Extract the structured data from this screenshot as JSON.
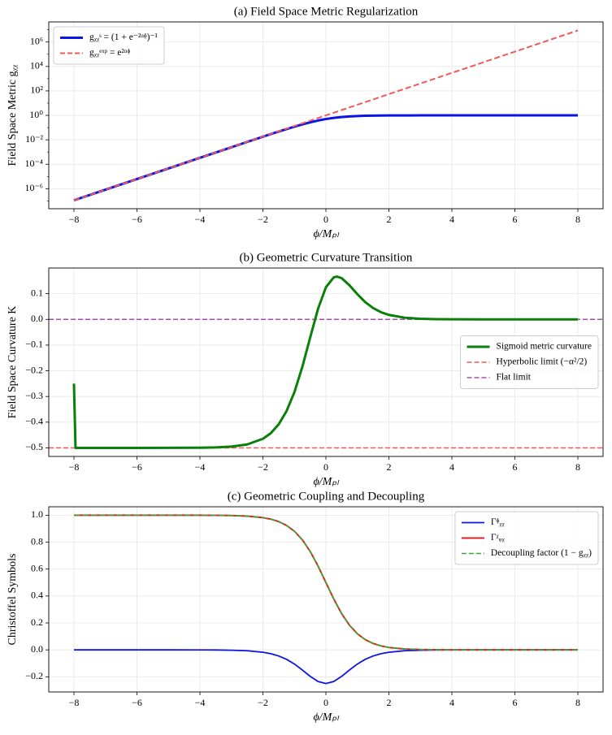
{
  "chart_data": [
    {
      "type": "line",
      "title": "(a) Field Space Metric Regularization",
      "xlabel": "ϕ/Mₚₗ",
      "ylabel": "Field Space Metric gᵪᵪ",
      "yscale": "log",
      "grid": true,
      "legend": "upper left",
      "x": [
        -8,
        -7,
        -6,
        -5,
        -4,
        -3.5,
        -3,
        -2.5,
        -2,
        -1.75,
        -1.5,
        -1.25,
        -1,
        -0.75,
        -0.5,
        -0.25,
        0,
        0.25,
        0.5,
        0.75,
        1,
        1.25,
        1.5,
        1.75,
        2,
        2.5,
        3,
        3.5,
        4,
        5,
        6,
        7,
        8
      ],
      "series": [
        {
          "name": "gᵪᵪˢ = (1 + e⁻²ᵅᶲ)⁻¹",
          "color": "#0a14e6",
          "linewidth": 3,
          "dashed": false,
          "values": [
            1.125e-07,
            8.32e-07,
            6.14e-06,
            4.54e-05,
            0.000335,
            0.000911,
            0.002473,
            0.006693,
            0.017986,
            0.029312,
            0.047426,
            0.075858,
            0.119203,
            0.182426,
            0.268941,
            0.377541,
            0.5,
            0.622459,
            0.731059,
            0.817574,
            0.880797,
            0.924142,
            0.952574,
            0.970688,
            0.982014,
            0.993307,
            0.997527,
            0.999089,
            0.999665,
            0.999955,
            0.999994,
            0.999999,
            1.0
          ]
        },
        {
          "name": "gᵪᵪᵉˣᵖ = e²ᵅᶲ",
          "color": "#f0585a",
          "linewidth": 2,
          "dashed": true,
          "values": [
            1.125e-07,
            8.32e-07,
            6.14e-06,
            4.54e-05,
            0.000335,
            0.000912,
            0.00248,
            0.00674,
            0.0183,
            0.0302,
            0.0498,
            0.0821,
            0.1353,
            0.2231,
            0.3679,
            0.6065,
            1,
            1.6487,
            2.7183,
            4.4817,
            7.389,
            12.18,
            20.09,
            33.12,
            54.6,
            148.4,
            403.4,
            1096.6,
            2981,
            22026,
            162755,
            1202604,
            8886111
          ]
        }
      ],
      "xlim": [
        -8.8,
        8.8
      ],
      "ylim": [
        2.3e-08,
        44000000.0
      ],
      "xticks": [
        {
          "value": -8,
          "label": "−8"
        },
        {
          "value": -6,
          "label": "−6"
        },
        {
          "value": -4,
          "label": "−4"
        },
        {
          "value": -2,
          "label": "−2"
        },
        0,
        2,
        4,
        6,
        8
      ],
      "yticks": [
        {
          "value": 1e-06,
          "label": "10⁻⁶"
        },
        {
          "value": 0.0001,
          "label": "10⁻⁴"
        },
        {
          "value": 0.01,
          "label": "10⁻²"
        },
        {
          "value": 1,
          "label": "10⁰"
        },
        {
          "value": 100,
          "label": "10²"
        },
        {
          "value": 10000,
          "label": "10⁴"
        },
        {
          "value": 1000000,
          "label": "10⁶"
        }
      ]
    },
    {
      "type": "line",
      "title": "(b) Geometric Curvature Transition",
      "xlabel": "ϕ/Mₚₗ",
      "ylabel": "Field Space Curvature K",
      "grid": true,
      "legend": "center right",
      "x": [
        -8,
        -7.95,
        -7,
        -6,
        -5,
        -4,
        -3.5,
        -3,
        -2.5,
        -2,
        -1.75,
        -1.5,
        -1.25,
        -1,
        -0.75,
        -0.5,
        -0.25,
        0,
        0.25,
        0.35,
        0.5,
        0.75,
        1,
        1.25,
        1.5,
        1.75,
        2,
        2.5,
        3,
        3.5,
        4,
        5,
        6,
        7,
        8
      ],
      "series": [
        {
          "name": "Sigmoid metric curvature",
          "color": "#0a800a",
          "linewidth": 3,
          "dashed": false,
          "values": [
            -0.25,
            -0.5,
            -0.5,
            -0.5,
            -0.4999,
            -0.4993,
            -0.4982,
            -0.4951,
            -0.4867,
            -0.4645,
            -0.4427,
            -0.4085,
            -0.3569,
            -0.2829,
            -0.1851,
            -0.0706,
            0.0413,
            0.125,
            0.1637,
            0.1667,
            0.1605,
            0.1325,
            0.0979,
            0.0672,
            0.0441,
            0.028,
            0.0175,
            0.0066,
            0.0025,
            0.0009,
            0.0003,
            0,
            0,
            0,
            0
          ]
        }
      ],
      "reference_lines": [
        {
          "name": "Hyperbolic limit (−α²/2)",
          "value": -0.5,
          "color": "#f0585a"
        },
        {
          "name": "Flat limit",
          "value": 0,
          "color": "#a050a8"
        }
      ],
      "xlim": [
        -8.8,
        8.8
      ],
      "ylim": [
        -0.5333,
        0.2
      ],
      "xticks": [
        {
          "value": -8,
          "label": "−8"
        },
        {
          "value": -6,
          "label": "−6"
        },
        {
          "value": -4,
          "label": "−4"
        },
        {
          "value": -2,
          "label": "−2"
        },
        0,
        2,
        4,
        6,
        8
      ],
      "yticks": [
        0.1,
        {
          "value": 0,
          "label": "0.0"
        },
        {
          "value": -0.1,
          "label": "−0.1"
        },
        {
          "value": -0.2,
          "label": "−0.2"
        },
        {
          "value": -0.3,
          "label": "−0.3"
        },
        {
          "value": -0.4,
          "label": "−0.4"
        },
        {
          "value": -0.5,
          "label": "−0.5"
        }
      ]
    },
    {
      "type": "line",
      "title": "(c) Geometric Coupling and Decoupling",
      "xlabel": "ϕ/Mₚₗ",
      "ylabel": "Christoffel Symbols",
      "grid": true,
      "legend": "upper right",
      "x": [
        -8,
        -7,
        -6,
        -5,
        -4,
        -3.5,
        -3,
        -2.5,
        -2,
        -1.75,
        -1.5,
        -1.25,
        -1,
        -0.75,
        -0.5,
        -0.25,
        0,
        0.25,
        0.5,
        0.75,
        1,
        1.25,
        1.5,
        1.75,
        2,
        2.5,
        3,
        3.5,
        4,
        5,
        6,
        7,
        8
      ],
      "series": [
        {
          "name": "Γᶲᵪᵪ",
          "color": "#0a14e6",
          "linewidth": 1.8,
          "dashed": false,
          "values": [
            0,
            0,
            0,
            0,
            -0.0003,
            -0.0009,
            -0.0025,
            -0.0066,
            -0.0177,
            -0.0285,
            -0.0452,
            -0.0701,
            -0.105,
            -0.1491,
            -0.1966,
            -0.235,
            -0.25,
            -0.235,
            -0.1966,
            -0.1491,
            -0.105,
            -0.0701,
            -0.0452,
            -0.0285,
            -0.0177,
            -0.0066,
            -0.0025,
            -0.0009,
            -0.0003,
            0,
            0,
            0,
            0
          ]
        },
        {
          "name": "Γᵡᵩᵪ",
          "color": "#e0201b",
          "linewidth": 2,
          "dashed": false,
          "values": [
            1.0,
            1.0,
            1.0,
            1.0,
            0.9997,
            0.9991,
            0.9975,
            0.9933,
            0.982,
            0.9707,
            0.9526,
            0.9241,
            0.8808,
            0.8176,
            0.7311,
            0.6225,
            0.5,
            0.3775,
            0.2689,
            0.1824,
            0.1192,
            0.0759,
            0.0474,
            0.0293,
            0.018,
            0.0067,
            0.0025,
            0.0009,
            0.0003,
            0,
            0,
            0,
            0
          ]
        },
        {
          "name": "Decoupling factor (1 − gᵪᵪ)",
          "color": "#3aa63a",
          "linewidth": 1.6,
          "dashed": true,
          "values": [
            1.0,
            1.0,
            1.0,
            1.0,
            0.9997,
            0.9991,
            0.9975,
            0.9933,
            0.982,
            0.9707,
            0.9526,
            0.9241,
            0.8808,
            0.8176,
            0.7311,
            0.6225,
            0.5,
            0.3775,
            0.2689,
            0.1824,
            0.1192,
            0.0759,
            0.0474,
            0.0293,
            0.018,
            0.0067,
            0.0025,
            0.0009,
            0.0003,
            0,
            0,
            0,
            0
          ]
        }
      ],
      "xlim": [
        -8.8,
        8.8
      ],
      "ylim": [
        -0.3125,
        1.0625
      ],
      "xticks": [
        {
          "value": -8,
          "label": "−8"
        },
        {
          "value": -6,
          "label": "−6"
        },
        {
          "value": -4,
          "label": "−4"
        },
        {
          "value": -2,
          "label": "−2"
        },
        0,
        2,
        4,
        6,
        8
      ],
      "yticks": [
        {
          "value": -0.2,
          "label": "−0.2"
        },
        {
          "value": 0,
          "label": "0.0"
        },
        0.2,
        0.4,
        0.6,
        0.8,
        {
          "value": 1,
          "label": "1.0"
        }
      ]
    }
  ]
}
